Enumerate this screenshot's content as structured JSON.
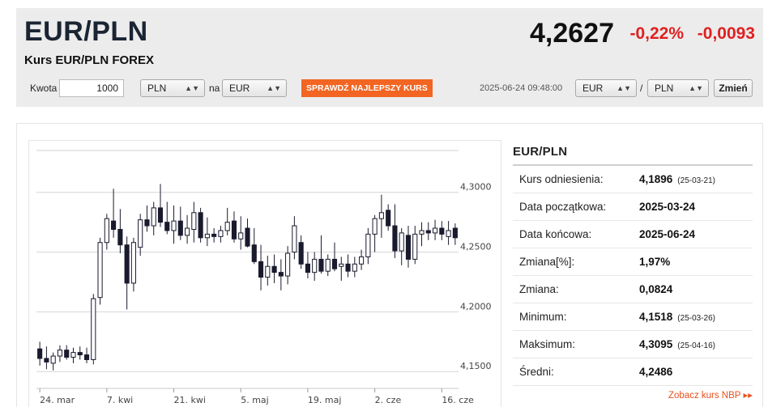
{
  "header": {
    "title": "EUR/PLN",
    "subtitle": "Kurs EUR/PLN FOREX",
    "rate": "4,2627",
    "change_pct": "-0,22%",
    "change_abs": "-0,0093",
    "change_color": "#e02020"
  },
  "converter": {
    "amount_label": "Kwota",
    "amount_value": "1000",
    "from_currency": "PLN",
    "na_label": "na",
    "to_currency": "EUR",
    "best_rate_button": "SPRAWDŹ NAJLEPSZY KURS",
    "timestamp": "2025-06-24 09:48:00",
    "pair_base": "EUR",
    "slash": "/",
    "pair_quote": "PLN",
    "swap_button": "Zmień"
  },
  "side": {
    "title": "EUR/PLN",
    "rows": [
      {
        "label": "Kurs odniesienia:",
        "value": "4,1896",
        "date": "(25-03-21)"
      },
      {
        "label": "Data początkowa:",
        "value": "2025-03-24",
        "date": ""
      },
      {
        "label": "Data końcowa:",
        "value": "2025-06-24",
        "date": ""
      },
      {
        "label": "Zmiana[%]:",
        "value": "1,97%",
        "date": ""
      },
      {
        "label": "Zmiana:",
        "value": "0,0824",
        "date": ""
      },
      {
        "label": "Minimum:",
        "value": "4,1518",
        "date": "(25-03-26)"
      },
      {
        "label": "Maksimum:",
        "value": "4,3095",
        "date": "(25-04-16)"
      },
      {
        "label": "Średni:",
        "value": "4,2486",
        "date": ""
      }
    ],
    "nbp_link": "Zobacz kurs NBP ▸▸",
    "accent": "#e8501c"
  },
  "chart_data": {
    "type": "candlestick",
    "ylim": [
      4.14,
      4.335
    ],
    "y_ticks": [
      4.15,
      4.2,
      4.25,
      4.3
    ],
    "y_tick_labels": [
      "4,1500",
      "4,2000",
      "4,2500",
      "4,3000"
    ],
    "x_tick_labels": [
      "24. mar",
      "7. kwi",
      "21. kwi",
      "5. maj",
      "19. maj",
      "2. cze",
      "16. cze"
    ],
    "x_tick_index": [
      0,
      10,
      20,
      30,
      40,
      50,
      60
    ],
    "grid": true,
    "up_color": "#ffffff",
    "down_color": "#1a1a2e",
    "candles": [
      {
        "o": 4.169,
        "h": 4.175,
        "l": 4.155,
        "c": 4.161
      },
      {
        "o": 4.161,
        "h": 4.171,
        "l": 4.152,
        "c": 4.158
      },
      {
        "o": 4.157,
        "h": 4.166,
        "l": 4.151,
        "c": 4.163
      },
      {
        "o": 4.163,
        "h": 4.172,
        "l": 4.158,
        "c": 4.168
      },
      {
        "o": 4.168,
        "h": 4.172,
        "l": 4.16,
        "c": 4.162
      },
      {
        "o": 4.162,
        "h": 4.17,
        "l": 4.157,
        "c": 4.166
      },
      {
        "o": 4.166,
        "h": 4.171,
        "l": 4.16,
        "c": 4.164
      },
      {
        "o": 4.164,
        "h": 4.17,
        "l": 4.157,
        "c": 4.16
      },
      {
        "o": 4.16,
        "h": 4.215,
        "l": 4.156,
        "c": 4.211
      },
      {
        "o": 4.212,
        "h": 4.262,
        "l": 4.206,
        "c": 4.258
      },
      {
        "o": 4.258,
        "h": 4.282,
        "l": 4.252,
        "c": 4.278
      },
      {
        "o": 4.276,
        "h": 4.303,
        "l": 4.262,
        "c": 4.269
      },
      {
        "o": 4.269,
        "h": 4.286,
        "l": 4.249,
        "c": 4.256
      },
      {
        "o": 4.256,
        "h": 4.263,
        "l": 4.202,
        "c": 4.224
      },
      {
        "o": 4.224,
        "h": 4.262,
        "l": 4.217,
        "c": 4.258
      },
      {
        "o": 4.254,
        "h": 4.282,
        "l": 4.247,
        "c": 4.277
      },
      {
        "o": 4.277,
        "h": 4.289,
        "l": 4.267,
        "c": 4.272
      },
      {
        "o": 4.272,
        "h": 4.292,
        "l": 4.264,
        "c": 4.287
      },
      {
        "o": 4.287,
        "h": 4.307,
        "l": 4.271,
        "c": 4.275
      },
      {
        "o": 4.275,
        "h": 4.292,
        "l": 4.265,
        "c": 4.268
      },
      {
        "o": 4.268,
        "h": 4.289,
        "l": 4.257,
        "c": 4.276
      },
      {
        "o": 4.276,
        "h": 4.288,
        "l": 4.26,
        "c": 4.264
      },
      {
        "o": 4.264,
        "h": 4.281,
        "l": 4.257,
        "c": 4.27
      },
      {
        "o": 4.269,
        "h": 4.292,
        "l": 4.258,
        "c": 4.283
      },
      {
        "o": 4.283,
        "h": 4.287,
        "l": 4.258,
        "c": 4.262
      },
      {
        "o": 4.262,
        "h": 4.279,
        "l": 4.255,
        "c": 4.265
      },
      {
        "o": 4.265,
        "h": 4.27,
        "l": 4.258,
        "c": 4.263
      },
      {
        "o": 4.263,
        "h": 4.272,
        "l": 4.258,
        "c": 4.268
      },
      {
        "o": 4.268,
        "h": 4.287,
        "l": 4.264,
        "c": 4.275
      },
      {
        "o": 4.276,
        "h": 4.284,
        "l": 4.258,
        "c": 4.261
      },
      {
        "o": 4.261,
        "h": 4.28,
        "l": 4.252,
        "c": 4.266
      },
      {
        "o": 4.27,
        "h": 4.278,
        "l": 4.254,
        "c": 4.255
      },
      {
        "o": 4.256,
        "h": 4.27,
        "l": 4.24,
        "c": 4.242
      },
      {
        "o": 4.242,
        "h": 4.256,
        "l": 4.218,
        "c": 4.229
      },
      {
        "o": 4.229,
        "h": 4.247,
        "l": 4.222,
        "c": 4.238
      },
      {
        "o": 4.238,
        "h": 4.248,
        "l": 4.224,
        "c": 4.233
      },
      {
        "o": 4.233,
        "h": 4.244,
        "l": 4.218,
        "c": 4.23
      },
      {
        "o": 4.23,
        "h": 4.255,
        "l": 4.223,
        "c": 4.249
      },
      {
        "o": 4.25,
        "h": 4.28,
        "l": 4.244,
        "c": 4.272
      },
      {
        "o": 4.258,
        "h": 4.264,
        "l": 4.236,
        "c": 4.24
      },
      {
        "o": 4.24,
        "h": 4.25,
        "l": 4.228,
        "c": 4.233
      },
      {
        "o": 4.233,
        "h": 4.25,
        "l": 4.226,
        "c": 4.244
      },
      {
        "o": 4.244,
        "h": 4.264,
        "l": 4.232,
        "c": 4.234
      },
      {
        "o": 4.234,
        "h": 4.248,
        "l": 4.23,
        "c": 4.244
      },
      {
        "o": 4.244,
        "h": 4.258,
        "l": 4.234,
        "c": 4.236
      },
      {
        "o": 4.238,
        "h": 4.246,
        "l": 4.226,
        "c": 4.24
      },
      {
        "o": 4.24,
        "h": 4.248,
        "l": 4.229,
        "c": 4.234
      },
      {
        "o": 4.234,
        "h": 4.246,
        "l": 4.229,
        "c": 4.24
      },
      {
        "o": 4.24,
        "h": 4.252,
        "l": 4.235,
        "c": 4.246
      },
      {
        "o": 4.246,
        "h": 4.27,
        "l": 4.24,
        "c": 4.265
      },
      {
        "o": 4.265,
        "h": 4.281,
        "l": 4.25,
        "c": 4.278
      },
      {
        "o": 4.278,
        "h": 4.298,
        "l": 4.262,
        "c": 4.283
      },
      {
        "o": 4.285,
        "h": 4.29,
        "l": 4.268,
        "c": 4.272
      },
      {
        "o": 4.272,
        "h": 4.29,
        "l": 4.245,
        "c": 4.251
      },
      {
        "o": 4.251,
        "h": 4.27,
        "l": 4.239,
        "c": 4.266
      },
      {
        "o": 4.264,
        "h": 4.272,
        "l": 4.237,
        "c": 4.244
      },
      {
        "o": 4.244,
        "h": 4.272,
        "l": 4.24,
        "c": 4.265
      },
      {
        "o": 4.265,
        "h": 4.275,
        "l": 4.255,
        "c": 4.268
      },
      {
        "o": 4.268,
        "h": 4.275,
        "l": 4.26,
        "c": 4.266
      },
      {
        "o": 4.266,
        "h": 4.277,
        "l": 4.26,
        "c": 4.27
      },
      {
        "o": 4.27,
        "h": 4.276,
        "l": 4.26,
        "c": 4.265
      },
      {
        "o": 4.263,
        "h": 4.276,
        "l": 4.256,
        "c": 4.268
      },
      {
        "o": 4.27,
        "h": 4.274,
        "l": 4.256,
        "c": 4.262
      }
    ]
  }
}
